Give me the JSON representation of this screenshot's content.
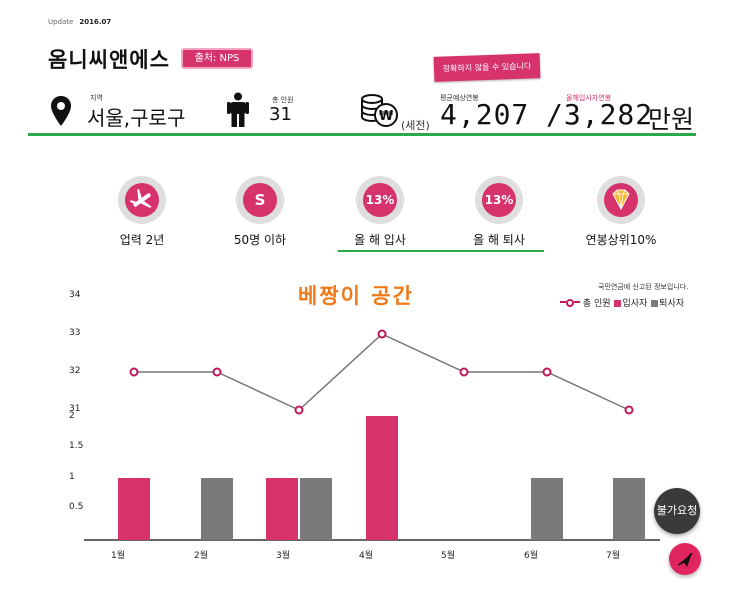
{
  "header": {
    "update_label": "Update",
    "update_date": "2016.07",
    "company_name": "옴니씨앤에스",
    "source_badge": "출처: NPS",
    "warning_badge": "정확하지 않을 수 있습니다"
  },
  "info": {
    "region_label": "지역",
    "region_value": "서울,구로구",
    "people_label": "총 인원",
    "people_value": "31",
    "salary_label": "평균예상연봉",
    "pretax_label": "(세전)",
    "salary_value": "4,207",
    "new_salary_label": "올해입사자연봉",
    "new_salary_value": "/3,282",
    "unit": "만원"
  },
  "stats": [
    {
      "icon": "airplane-icon",
      "badge": "",
      "label": "업력 2년"
    },
    {
      "icon": "s-icon",
      "badge": "S",
      "label": "50명 이하"
    },
    {
      "icon": "percent-icon",
      "badge": "13%",
      "label": "올 해 입사"
    },
    {
      "icon": "percent-icon",
      "badge": "13%",
      "label": "올 해 퇴사"
    },
    {
      "icon": "diamond-icon",
      "badge": "",
      "label": "연봉상위10%"
    }
  ],
  "chart_note": "국민연금에 신고된 정보입니다.",
  "chart_title": "베짱이 공간",
  "legend": {
    "total": "총 인원",
    "joiners": "입사자",
    "leavers": "퇴사자"
  },
  "colors": {
    "accent": "#d6336c",
    "leavers": "#7a7a7a",
    "line": "#777777",
    "green": "#2aa84a",
    "title": "#f07a1a"
  },
  "chart_data": {
    "type": "bar",
    "categories": [
      "1월",
      "2월",
      "3월",
      "4월",
      "5월",
      "6월",
      "7월"
    ],
    "series": [
      {
        "name": "총 인원",
        "type": "line",
        "values": [
          32,
          32,
          31,
          33,
          32,
          32,
          31
        ],
        "axis_ticks": [
          31,
          32,
          33,
          34
        ]
      },
      {
        "name": "입사자",
        "type": "bar",
        "values": [
          1,
          0,
          1,
          2,
          0,
          0,
          0
        ]
      },
      {
        "name": "퇴사자",
        "type": "bar",
        "values": [
          0,
          1,
          1,
          0,
          0,
          1,
          1
        ]
      }
    ],
    "bar_axis_ticks": [
      "0.5",
      "1",
      "1.5",
      "2"
    ],
    "line_axis_ticks": [
      "31",
      "32",
      "33",
      "34"
    ]
  },
  "buttons": {
    "request": "불가요청",
    "send_icon": "paper-plane-icon"
  }
}
